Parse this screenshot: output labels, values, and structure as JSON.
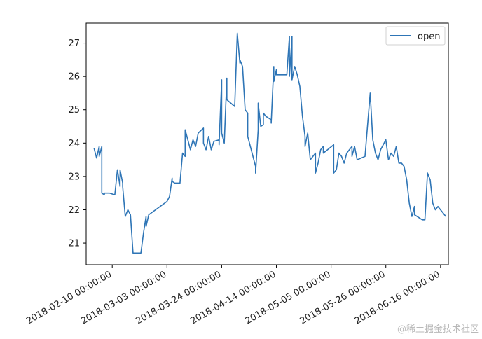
{
  "chart_data": {
    "type": "line",
    "title": "",
    "xlabel": "",
    "ylabel": "",
    "ylim": [
      20.35,
      27.6
    ],
    "xlim": [
      "2018-01-31",
      "2018-06-19"
    ],
    "x_tick_labels": [
      "2018-02-10 00:00:00",
      "2018-03-03 00:00:00",
      "2018-03-24 00:00:00",
      "2018-04-14 00:00:00",
      "2018-05-05 00:00:00",
      "2018-05-26 00:00:00",
      "2018-06-16 00:00:00"
    ],
    "y_tick_labels": [
      "21",
      "22",
      "23",
      "24",
      "25",
      "26",
      "27"
    ],
    "y_ticks": [
      21,
      22,
      23,
      24,
      25,
      26,
      27
    ],
    "grid": false,
    "legend_position": "top-right",
    "color": "#2e75b6",
    "series": [
      {
        "name": "open",
        "points": [
          [
            "2018-02-03",
            23.85
          ],
          [
            "2018-02-04",
            23.55
          ],
          [
            "2018-02-05",
            23.9
          ],
          [
            "2018-02-05",
            23.6
          ],
          [
            "2018-02-06",
            23.9
          ],
          [
            "2018-02-06",
            22.5
          ],
          [
            "2018-02-07",
            22.45
          ],
          [
            "2018-02-07",
            22.5
          ],
          [
            "2018-02-09",
            22.5
          ],
          [
            "2018-02-11",
            22.45
          ],
          [
            "2018-02-12",
            23.2
          ],
          [
            "2018-02-13",
            22.7
          ],
          [
            "2018-02-13",
            23.2
          ],
          [
            "2018-02-14",
            22.8
          ],
          [
            "2018-02-14",
            22.7
          ],
          [
            "2018-02-15",
            21.8
          ],
          [
            "2018-02-16",
            22.0
          ],
          [
            "2018-02-17",
            21.85
          ],
          [
            "2018-02-18",
            20.7
          ],
          [
            "2018-02-21",
            20.7
          ],
          [
            "2018-02-22",
            21.3
          ],
          [
            "2018-02-23",
            21.8
          ],
          [
            "2018-02-23",
            21.5
          ],
          [
            "2018-02-24",
            21.85
          ],
          [
            "2018-03-03",
            22.25
          ],
          [
            "2018-03-04",
            22.4
          ],
          [
            "2018-03-05",
            22.95
          ],
          [
            "2018-03-05",
            22.85
          ],
          [
            "2018-03-06",
            22.8
          ],
          [
            "2018-03-08",
            22.8
          ],
          [
            "2018-03-09",
            23.7
          ],
          [
            "2018-03-10",
            23.6
          ],
          [
            "2018-03-10",
            24.4
          ],
          [
            "2018-03-11",
            24.1
          ],
          [
            "2018-03-12",
            23.8
          ],
          [
            "2018-03-13",
            24.1
          ],
          [
            "2018-03-14",
            23.9
          ],
          [
            "2018-03-15",
            24.3
          ],
          [
            "2018-03-17",
            24.45
          ],
          [
            "2018-03-17",
            24.0
          ],
          [
            "2018-03-18",
            23.8
          ],
          [
            "2018-03-19",
            24.2
          ],
          [
            "2018-03-20",
            23.8
          ],
          [
            "2018-03-21",
            24.05
          ],
          [
            "2018-03-23",
            24.1
          ],
          [
            "2018-03-23",
            23.95
          ],
          [
            "2018-03-24",
            25.9
          ],
          [
            "2018-03-24",
            24.3
          ],
          [
            "2018-03-25",
            24.0
          ],
          [
            "2018-03-26",
            25.95
          ],
          [
            "2018-03-26",
            25.3
          ],
          [
            "2018-03-29",
            25.1
          ],
          [
            "2018-03-30",
            27.3
          ],
          [
            "2018-03-31",
            26.4
          ],
          [
            "2018-03-31",
            26.5
          ],
          [
            "2018-04-01",
            26.3
          ],
          [
            "2018-04-02",
            25.0
          ],
          [
            "2018-04-03",
            24.9
          ],
          [
            "2018-04-03",
            24.2
          ],
          [
            "2018-04-06",
            23.3
          ],
          [
            "2018-04-06",
            23.1
          ],
          [
            "2018-04-07",
            24.4
          ],
          [
            "2018-04-07",
            25.2
          ],
          [
            "2018-04-08",
            24.5
          ],
          [
            "2018-04-09",
            24.55
          ],
          [
            "2018-04-09",
            24.9
          ],
          [
            "2018-04-10",
            24.8
          ],
          [
            "2018-04-12",
            24.7
          ],
          [
            "2018-04-12",
            24.6
          ],
          [
            "2018-04-13",
            26.3
          ],
          [
            "2018-04-13",
            25.85
          ],
          [
            "2018-04-14",
            26.2
          ],
          [
            "2018-04-14",
            26.05
          ],
          [
            "2018-04-18",
            26.05
          ],
          [
            "2018-04-19",
            27.2
          ],
          [
            "2018-04-19",
            26.0
          ],
          [
            "2018-04-20",
            27.2
          ],
          [
            "2018-04-20",
            25.9
          ],
          [
            "2018-04-21",
            26.3
          ],
          [
            "2018-04-22",
            26.05
          ],
          [
            "2018-04-23",
            25.7
          ],
          [
            "2018-04-24",
            24.8
          ],
          [
            "2018-04-25",
            24.2
          ],
          [
            "2018-04-25",
            23.9
          ],
          [
            "2018-04-26",
            24.3
          ],
          [
            "2018-04-27",
            23.5
          ],
          [
            "2018-04-29",
            23.7
          ],
          [
            "2018-04-29",
            23.1
          ],
          [
            "2018-04-30",
            23.4
          ],
          [
            "2018-05-01",
            23.8
          ],
          [
            "2018-05-02",
            23.9
          ],
          [
            "2018-05-02",
            23.7
          ],
          [
            "2018-05-06",
            23.95
          ],
          [
            "2018-05-06",
            23.1
          ],
          [
            "2018-05-07",
            23.2
          ],
          [
            "2018-05-08",
            23.7
          ],
          [
            "2018-05-09",
            23.6
          ],
          [
            "2018-05-10",
            23.4
          ],
          [
            "2018-05-11",
            23.7
          ],
          [
            "2018-05-12",
            23.8
          ],
          [
            "2018-05-13",
            23.9
          ],
          [
            "2018-05-13",
            23.6
          ],
          [
            "2018-05-14",
            23.9
          ],
          [
            "2018-05-15",
            23.5
          ],
          [
            "2018-05-18",
            23.6
          ],
          [
            "2018-05-20",
            25.5
          ],
          [
            "2018-05-21",
            24.1
          ],
          [
            "2018-05-22",
            23.7
          ],
          [
            "2018-05-23",
            23.5
          ],
          [
            "2018-05-24",
            23.8
          ],
          [
            "2018-05-26",
            24.1
          ],
          [
            "2018-05-27",
            23.5
          ],
          [
            "2018-05-28",
            23.7
          ],
          [
            "2018-05-29",
            23.6
          ],
          [
            "2018-05-30",
            23.9
          ],
          [
            "2018-05-31",
            23.4
          ],
          [
            "2018-06-01",
            23.4
          ],
          [
            "2018-06-02",
            23.3
          ],
          [
            "2018-06-03",
            22.9
          ],
          [
            "2018-06-04",
            22.2
          ],
          [
            "2018-06-05",
            21.8
          ],
          [
            "2018-06-06",
            22.1
          ],
          [
            "2018-06-06",
            21.85
          ],
          [
            "2018-06-09",
            21.7
          ],
          [
            "2018-06-10",
            21.7
          ],
          [
            "2018-06-11",
            23.1
          ],
          [
            "2018-06-12",
            22.9
          ],
          [
            "2018-06-13",
            22.2
          ],
          [
            "2018-06-14",
            22.0
          ],
          [
            "2018-06-15",
            22.1
          ],
          [
            "2018-06-16",
            22.0
          ],
          [
            "2018-06-17",
            21.9
          ],
          [
            "2018-06-18",
            21.8
          ]
        ]
      }
    ]
  },
  "watermark": "@稀土掘金技术社区"
}
